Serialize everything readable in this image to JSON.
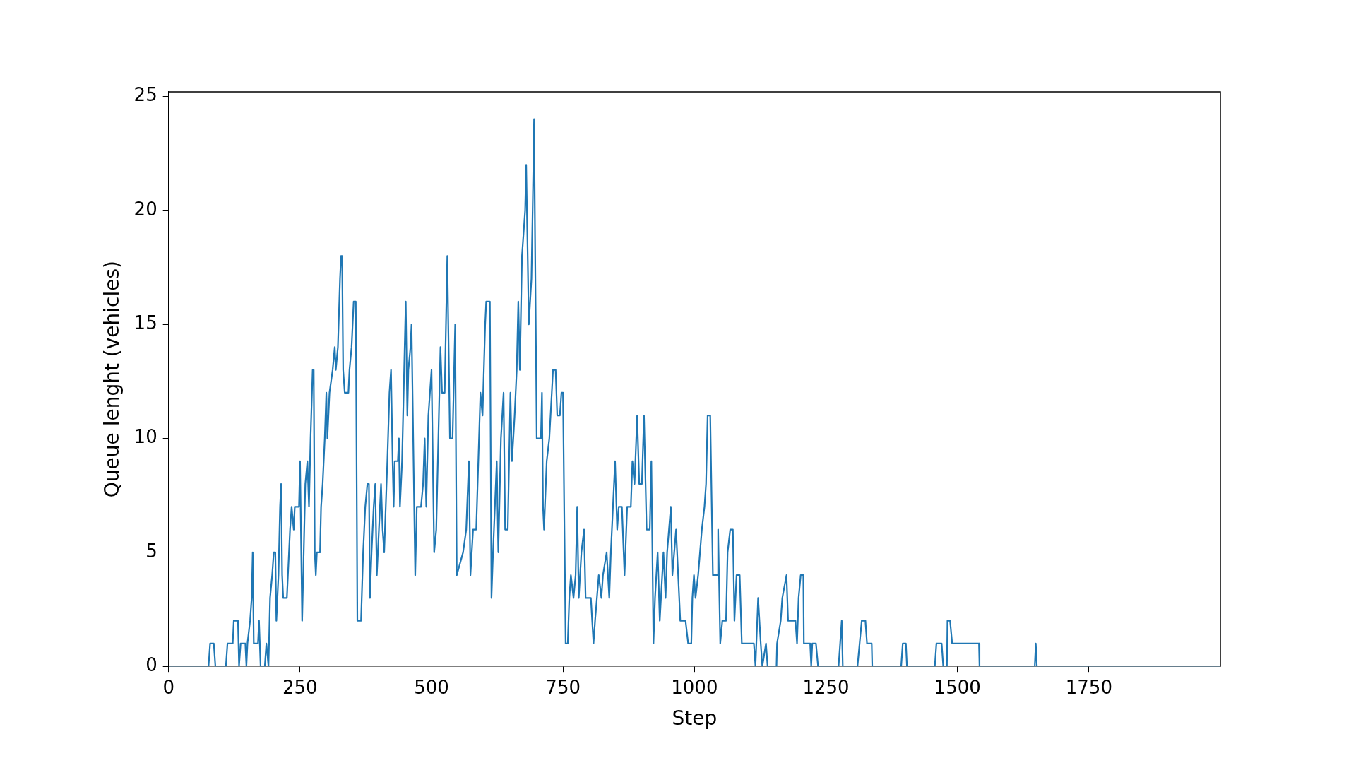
{
  "chart_data": {
    "type": "line",
    "xlabel": "Step",
    "ylabel": "Queue lenght (vehicles)",
    "xlim": [
      0,
      2000
    ],
    "ylim": [
      0,
      25.2
    ],
    "xticks": [
      0,
      250,
      500,
      750,
      1000,
      1250,
      1500,
      1750
    ],
    "yticks": [
      0,
      5,
      10,
      15,
      20,
      25
    ],
    "grid": false,
    "legend": false,
    "marker": "none",
    "line_style": "solid",
    "series": [
      {
        "color": "#1f77b4",
        "x": [
          0,
          76,
          79,
          86,
          89,
          109,
          112,
          122,
          124,
          132,
          134,
          137,
          146,
          148,
          150,
          155,
          158,
          160,
          162,
          170,
          172,
          175,
          183,
          186,
          190,
          193,
          197,
          200,
          203,
          205,
          209,
          212,
          214,
          216,
          218,
          225,
          227,
          231,
          234,
          238,
          240,
          248,
          250,
          254,
          257,
          260,
          264,
          267,
          270,
          274,
          276,
          278,
          280,
          282,
          288,
          290,
          293,
          297,
          300,
          302,
          306,
          312,
          316,
          318,
          322,
          326,
          328,
          330,
          332,
          335,
          342,
          344,
          348,
          352,
          356,
          359,
          362,
          366,
          370,
          374,
          378,
          381,
          383,
          386,
          390,
          393,
          396,
          400,
          404,
          407,
          410,
          413,
          416,
          420,
          423,
          426,
          428,
          430,
          436,
          438,
          440,
          444,
          448,
          451,
          454,
          456,
          460,
          462,
          469,
          472,
          480,
          484,
          487,
          490,
          494,
          500,
          505,
          509,
          514,
          517,
          520,
          525,
          530,
          535,
          540,
          545,
          548,
          560,
          566,
          571,
          574,
          579,
          585,
          593,
          597,
          602,
          604,
          611,
          614,
          617,
          624,
          627,
          632,
          637,
          640,
          645,
          650,
          653,
          658,
          662,
          665,
          668,
          672,
          678,
          680,
          685,
          690,
          693,
          695,
          700,
          708,
          710,
          712,
          714,
          719,
          724,
          731,
          736,
          739,
          744,
          747,
          750,
          755,
          759,
          762,
          765,
          770,
          774,
          777,
          780,
          785,
          790,
          793,
          803,
          808,
          811,
          818,
          823,
          826,
          833,
          838,
          841,
          849,
          853,
          856,
          862,
          867,
          872,
          879,
          882,
          886,
          891,
          895,
          900,
          904,
          909,
          915,
          918,
          922,
          925,
          930,
          934,
          941,
          945,
          948,
          955,
          958,
          965,
          973,
          983,
          988,
          994,
          996,
          999,
          1002,
          1007,
          1014,
          1019,
          1022,
          1025,
          1030,
          1035,
          1044,
          1045,
          1049,
          1053,
          1060,
          1063,
          1068,
          1073,
          1076,
          1080,
          1086,
          1090,
          1113,
          1116,
          1121,
          1126,
          1129,
          1136,
          1139,
          1156,
          1157,
          1164,
          1167,
          1175,
          1178,
          1192,
          1195,
          1198,
          1202,
          1207,
          1208,
          1220,
          1222,
          1224,
          1231,
          1235,
          1274,
          1277,
          1280,
          1282,
          1310,
          1314,
          1318,
          1325,
          1328,
          1337,
          1338,
          1393,
          1396,
          1402,
          1404,
          1457,
          1460,
          1470,
          1473,
          1480,
          1481,
          1486,
          1490,
          1541,
          1542,
          1647,
          1649,
          1651,
          1999
        ],
        "values": [
          0,
          0,
          1,
          1,
          0,
          0,
          1,
          1,
          2,
          2,
          0,
          1,
          1,
          0,
          1,
          2,
          3,
          5,
          1,
          1,
          2,
          0,
          0,
          1,
          0,
          3,
          4,
          5,
          5,
          2,
          4,
          7,
          8,
          4,
          3,
          3,
          4,
          6,
          7,
          6,
          7,
          7,
          9,
          2,
          5,
          8,
          9,
          7,
          10,
          13,
          13,
          5,
          4,
          5,
          5,
          7,
          8,
          10,
          12,
          10,
          12,
          13,
          14,
          13,
          14,
          17,
          18,
          18,
          13,
          12,
          12,
          13,
          14,
          16,
          16,
          2,
          2,
          2,
          5,
          7,
          8,
          8,
          3,
          5,
          7,
          8,
          4,
          6,
          8,
          6,
          5,
          7,
          9,
          12,
          13,
          9,
          7,
          9,
          9,
          10,
          7,
          9,
          13,
          16,
          11,
          13,
          14,
          15,
          4,
          7,
          7,
          8,
          10,
          7,
          11,
          13,
          5,
          6,
          11,
          14,
          12,
          12,
          18,
          10,
          10,
          15,
          4,
          5,
          6,
          9,
          4,
          6,
          6,
          12,
          11,
          15,
          16,
          16,
          3,
          5,
          9,
          5,
          10,
          12,
          6,
          6,
          12,
          9,
          11,
          13,
          16,
          13,
          18,
          20,
          22,
          15,
          17,
          21,
          24,
          10,
          10,
          12,
          7,
          6,
          9,
          10,
          13,
          13,
          11,
          11,
          12,
          12,
          1,
          1,
          3,
          4,
          3,
          4,
          7,
          3,
          5,
          6,
          3,
          3,
          1,
          2,
          4,
          3,
          4,
          5,
          3,
          5,
          9,
          6,
          7,
          7,
          4,
          7,
          7,
          9,
          8,
          11,
          8,
          8,
          11,
          6,
          6,
          9,
          1,
          3,
          5,
          2,
          5,
          3,
          5,
          7,
          4,
          6,
          2,
          2,
          1,
          1,
          3,
          4,
          3,
          4,
          6,
          7,
          8,
          11,
          11,
          4,
          4,
          6,
          1,
          2,
          2,
          5,
          6,
          6,
          2,
          4,
          4,
          1,
          1,
          0,
          3,
          1,
          0,
          1,
          0,
          0,
          1,
          2,
          3,
          4,
          2,
          2,
          1,
          3,
          4,
          4,
          1,
          1,
          0,
          1,
          1,
          0,
          0,
          1,
          2,
          0,
          0,
          1,
          2,
          2,
          1,
          1,
          0,
          0,
          1,
          1,
          0,
          0,
          1,
          1,
          0,
          0,
          2,
          2,
          1,
          1,
          0,
          0,
          1,
          0,
          0
        ]
      }
    ]
  }
}
